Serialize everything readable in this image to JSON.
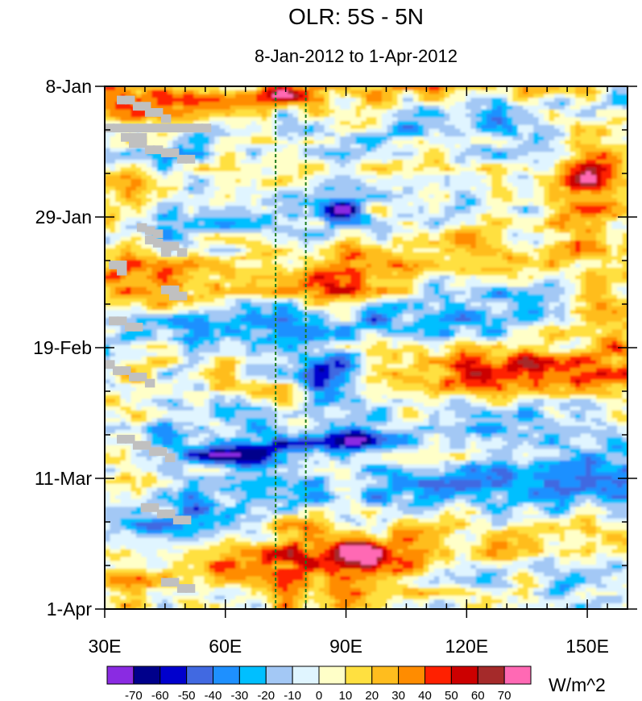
{
  "chart_data": {
    "type": "heatmap",
    "title": "OLR: 5S - 5N",
    "subtitle": "8-Jan-2012 to 1-Apr-2012",
    "x_range": [
      30,
      160
    ],
    "x_ticks": [
      30,
      60,
      90,
      120,
      150
    ],
    "x_tick_labels": [
      "30E",
      "60E",
      "90E",
      "120E",
      "150E"
    ],
    "y_range_days": [
      0,
      84
    ],
    "y_ticks_days": [
      0,
      21,
      42,
      63,
      84
    ],
    "y_tick_labels": [
      "8-Jan",
      "29-Jan",
      "19-Feb",
      "11-Mar",
      "1-Apr"
    ],
    "reference_lines_lon": [
      72.5,
      80
    ],
    "colorbar": {
      "labels": [
        "-70",
        "-60",
        "-50",
        "-40",
        "-30",
        "-20",
        "-10",
        "0",
        "10",
        "20",
        "30",
        "40",
        "50",
        "60",
        "70"
      ],
      "colors": [
        "#8a2be2",
        "#00008b",
        "#0000cd",
        "#4169e1",
        "#1e90ff",
        "#00bfff",
        "#a3c8f5",
        "#e0f5ff",
        "#ffffc8",
        "#ffe040",
        "#ffbd1e",
        "#ff8c00",
        "#ff2000",
        "#cc0000",
        "#a52a2a",
        "#ff69b4"
      ],
      "units": "W/m^2"
    },
    "field_features": [
      {
        "lon": [
          70,
          78
        ],
        "day": [
          0,
          2
        ],
        "value": 55
      },
      {
        "lon": [
          70,
          80
        ],
        "day": [
          9,
          13
        ],
        "value": 35
      },
      {
        "lon": [
          83,
          93
        ],
        "day": [
          17,
          22
        ],
        "value": -55
      },
      {
        "lon": [
          81,
          100
        ],
        "day": [
          28,
          34
        ],
        "value": 40
      },
      {
        "lon": [
          145,
          160
        ],
        "day": [
          8,
          20
        ],
        "value": 50
      },
      {
        "lon": [
          145,
          160
        ],
        "day": [
          32,
          38
        ],
        "value": 55
      },
      {
        "lon": [
          113,
          160
        ],
        "day": [
          44,
          50
        ],
        "value": 45
      },
      {
        "lon": [
          80,
          92
        ],
        "day": [
          43,
          48
        ],
        "value": -70
      },
      {
        "lon": [
          51,
          82
        ],
        "day": [
          57,
          61
        ],
        "value": -65
      },
      {
        "lon": [
          88,
          100
        ],
        "day": [
          55,
          58
        ],
        "value": -70
      },
      {
        "lon": [
          62,
          102
        ],
        "day": [
          68,
          84
        ],
        "value": 32
      },
      {
        "lon": [
          91,
          99
        ],
        "day": [
          73,
          77
        ],
        "value": 55
      }
    ]
  }
}
